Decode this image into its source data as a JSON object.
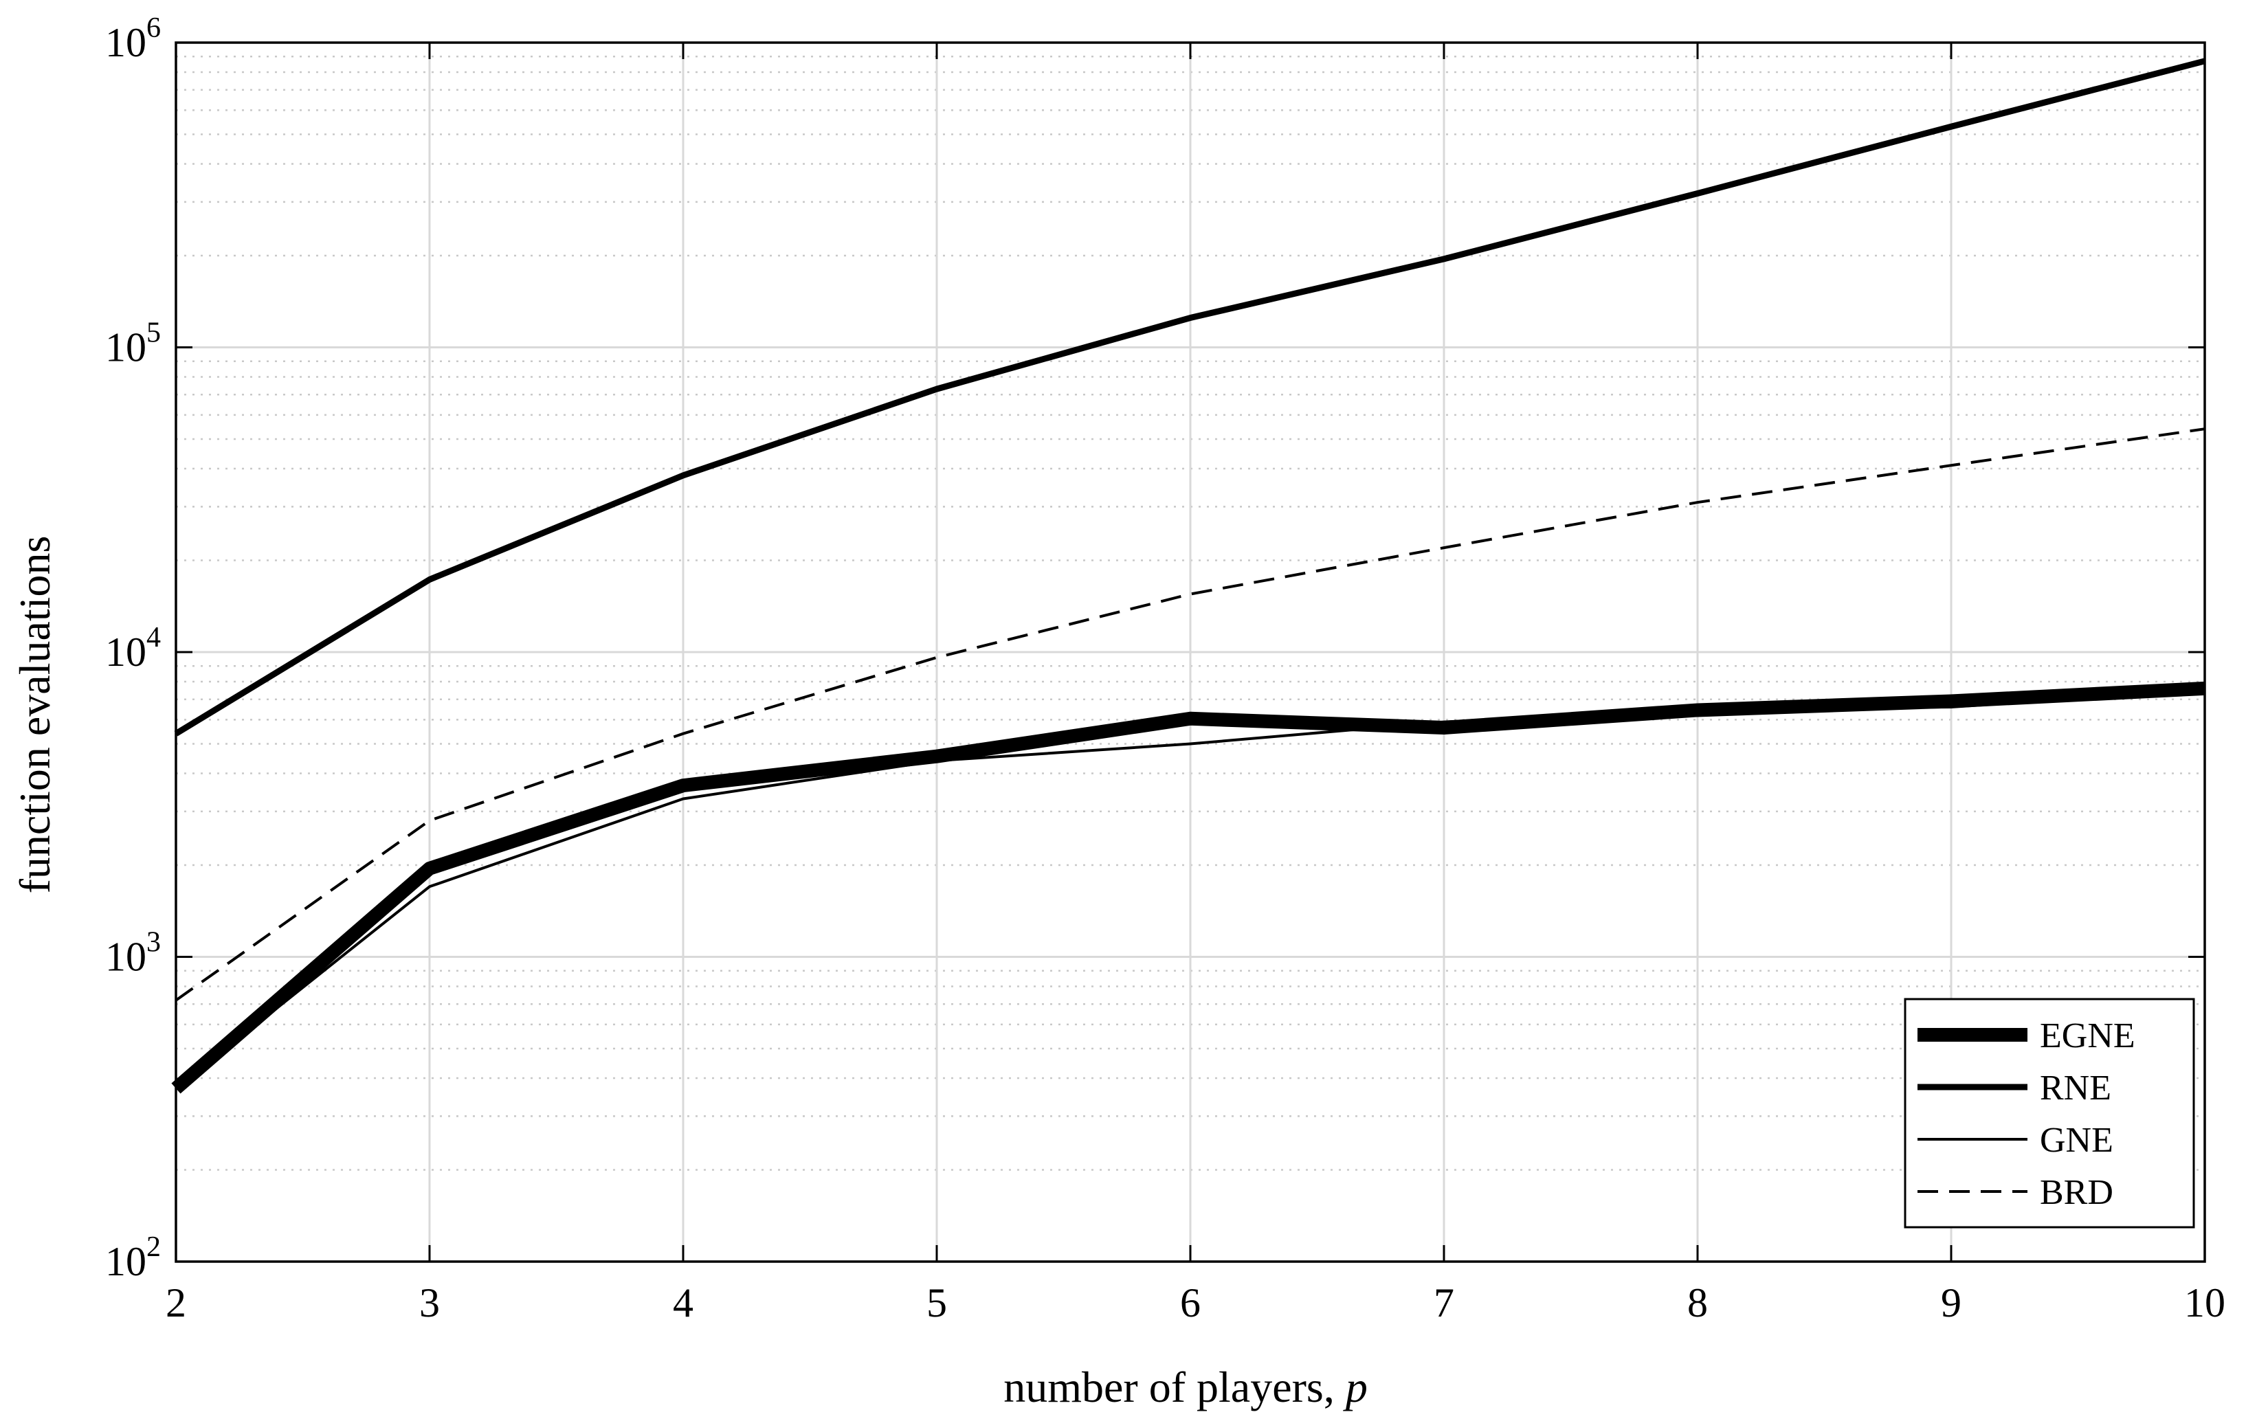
{
  "chart_data": {
    "type": "line",
    "xlabel": "number of players, ",
    "xlabel_var": "p",
    "ylabel": "function evaluations",
    "xlim": [
      2,
      10
    ],
    "ylim": [
      100,
      1000000
    ],
    "yscale": "log",
    "grid": true,
    "minor_grid": true,
    "legend_position": "bottom-right",
    "x_ticks": [
      "2",
      "3",
      "4",
      "5",
      "6",
      "7",
      "8",
      "9",
      "10"
    ],
    "y_ticks": [
      {
        "base": "10",
        "exp": "2"
      },
      {
        "base": "10",
        "exp": "3"
      },
      {
        "base": "10",
        "exp": "4"
      },
      {
        "base": "10",
        "exp": "5"
      },
      {
        "base": "10",
        "exp": "6"
      }
    ],
    "x": [
      2,
      3,
      4,
      5,
      6,
      7,
      8,
      9,
      10
    ],
    "series": [
      {
        "name": "EGNE",
        "style": "thick-solid",
        "values": [
          370,
          1950,
          3650,
          4550,
          6050,
          5650,
          6450,
          6900,
          7600
        ]
      },
      {
        "name": "RNE",
        "style": "medium-solid",
        "values": [
          5400,
          17300,
          38000,
          73000,
          125000,
          195000,
          320000,
          530000,
          870000
        ]
      },
      {
        "name": "GNE",
        "style": "thin-solid",
        "values": [
          370,
          1700,
          3300,
          4400,
          5000,
          5900,
          6500,
          6600,
          7500
        ]
      },
      {
        "name": "BRD",
        "style": "dashed",
        "values": [
          720,
          2800,
          5400,
          9600,
          15500,
          22000,
          31000,
          41000,
          54000
        ]
      }
    ]
  }
}
